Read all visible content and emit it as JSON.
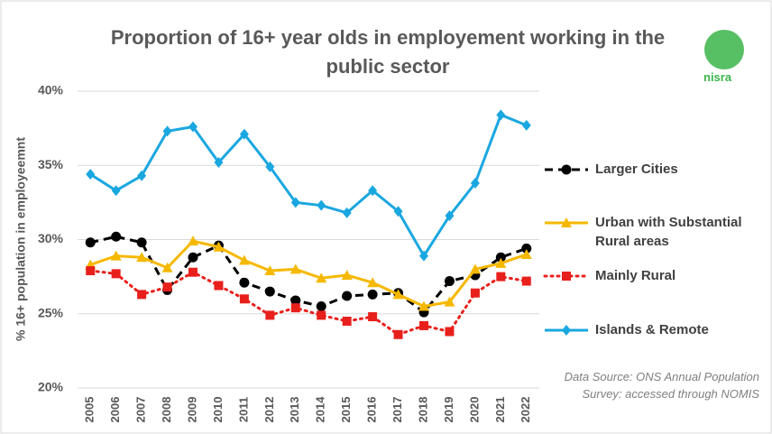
{
  "chart_data": {
    "type": "line",
    "title": "Proportion of 16+ year olds in employement working in the public sector",
    "y_label": "% 16+ population in employeemnt",
    "categories": [
      "2005",
      "2006",
      "2007",
      "2008",
      "2009",
      "2010",
      "2011",
      "2012",
      "2013",
      "2014",
      "2015",
      "2016",
      "2017",
      "2018",
      "2019",
      "2020",
      "2021",
      "2022"
    ],
    "series": [
      {
        "name": "Larger Cities",
        "color": "#000000",
        "dash": "dashed",
        "marker": "circle",
        "values": [
          29.8,
          30.2,
          29.8,
          26.6,
          28.8,
          29.6,
          27.1,
          26.5,
          25.9,
          25.5,
          26.2,
          26.3,
          26.4,
          25.1,
          27.2,
          27.6,
          28.8,
          29.4
        ]
      },
      {
        "name": "Urban with Substantial Rural areas",
        "color": "#f5b800",
        "dash": "solid",
        "marker": "triangle",
        "values": [
          28.3,
          28.9,
          28.8,
          28.1,
          29.9,
          29.5,
          28.6,
          27.9,
          28.0,
          27.4,
          27.6,
          27.1,
          26.3,
          25.5,
          25.8,
          28.0,
          28.4,
          29.0
        ]
      },
      {
        "name": "Mainly Rural",
        "color": "#e8201c",
        "dash": "dotted",
        "marker": "square",
        "values": [
          27.9,
          27.7,
          26.3,
          26.8,
          27.8,
          26.9,
          26.0,
          24.9,
          25.4,
          24.9,
          24.5,
          24.8,
          23.6,
          24.2,
          23.8,
          26.4,
          27.5,
          27.2
        ]
      },
      {
        "name": "Islands & Remote",
        "color": "#1aa7e0",
        "dash": "solid",
        "marker": "diamond",
        "values": [
          34.4,
          33.3,
          34.3,
          37.3,
          37.6,
          35.2,
          37.1,
          34.9,
          32.5,
          32.3,
          31.8,
          33.3,
          31.9,
          28.9,
          31.6,
          33.8,
          38.4,
          37.7
        ]
      }
    ],
    "ylim": [
      20,
      40
    ],
    "yticks": [
      {
        "value": 20,
        "label": "20%"
      },
      {
        "value": 25,
        "label": "25%"
      },
      {
        "value": 30,
        "label": "30%"
      },
      {
        "value": 35,
        "label": "35%"
      },
      {
        "value": 40,
        "label": "40%"
      }
    ],
    "grid": true,
    "legend": "right",
    "source": "Data Source: ONS Annual Population Survey: accessed through NOMIS",
    "logo_text": "nisra"
  }
}
